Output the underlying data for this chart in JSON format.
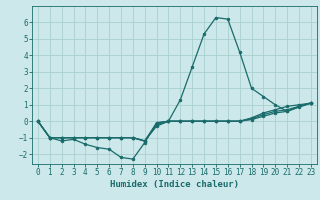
{
  "xlabel": "Humidex (Indice chaleur)",
  "bg_color": "#cce8ea",
  "grid_color": "#aacfcf",
  "line_color": "#1a6b6b",
  "xlim": [
    -0.5,
    23.5
  ],
  "ylim": [
    -2.6,
    7.0
  ],
  "xticks": [
    0,
    1,
    2,
    3,
    4,
    5,
    6,
    7,
    8,
    9,
    10,
    11,
    12,
    13,
    14,
    15,
    16,
    17,
    18,
    19,
    20,
    21,
    22,
    23
  ],
  "yticks": [
    -2,
    -1,
    0,
    1,
    2,
    3,
    4,
    5,
    6
  ],
  "lines": [
    {
      "x": [
        0,
        1,
        2,
        3,
        4,
        5,
        6,
        7,
        8,
        9,
        10,
        11,
        12,
        13,
        14,
        15,
        16,
        17,
        18,
        19,
        20,
        21,
        22,
        23
      ],
      "y": [
        0,
        -1,
        -1.2,
        -1.1,
        -1.4,
        -1.6,
        -1.7,
        -2.2,
        -2.3,
        -1.3,
        -0.1,
        0.0,
        1.3,
        3.3,
        5.3,
        6.3,
        6.2,
        4.2,
        2.0,
        1.5,
        1.0,
        0.6,
        0.9,
        1.1
      ]
    },
    {
      "x": [
        0,
        1,
        2,
        3,
        4,
        5,
        6,
        7,
        8,
        9,
        10,
        11,
        12,
        13,
        14,
        15,
        16,
        17,
        18,
        19,
        20,
        21,
        22,
        23
      ],
      "y": [
        0,
        -1,
        -1,
        -1,
        -1,
        -1,
        -1,
        -1,
        -1,
        -1.2,
        -0.3,
        0,
        0,
        0,
        0,
        0,
        0,
        0,
        0.2,
        0.5,
        0.7,
        0.9,
        1.0,
        1.1
      ]
    },
    {
      "x": [
        0,
        1,
        2,
        3,
        4,
        5,
        6,
        7,
        8,
        9,
        10,
        11,
        12,
        13,
        14,
        15,
        16,
        17,
        18,
        19,
        20,
        21,
        22,
        23
      ],
      "y": [
        0,
        -1,
        -1,
        -1,
        -1,
        -1,
        -1,
        -1,
        -1,
        -1.2,
        -0.2,
        0,
        0,
        0,
        0,
        0,
        0,
        0,
        0.1,
        0.3,
        0.5,
        0.6,
        0.85,
        1.1
      ]
    },
    {
      "x": [
        0,
        1,
        2,
        3,
        4,
        5,
        6,
        7,
        8,
        9,
        10,
        11,
        12,
        13,
        14,
        15,
        16,
        17,
        18,
        19,
        20,
        21,
        22,
        23
      ],
      "y": [
        0,
        -1,
        -1,
        -1,
        -1,
        -1,
        -1,
        -1,
        -1,
        -1.2,
        -0.1,
        0,
        0,
        0,
        0,
        0,
        0,
        0,
        0.15,
        0.4,
        0.6,
        0.7,
        0.9,
        1.1
      ]
    }
  ]
}
